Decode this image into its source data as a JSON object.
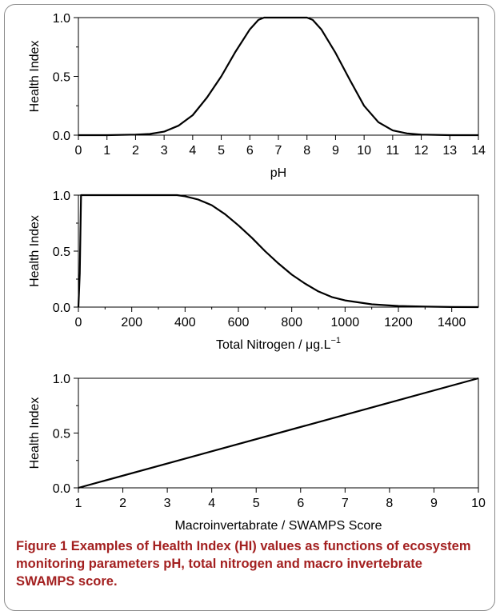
{
  "chart_data": [
    {
      "type": "line",
      "xlabel": "pH",
      "ylabel": "Health Index",
      "xlim": [
        0,
        14
      ],
      "ylim": [
        0,
        1
      ],
      "xticks": [
        "0",
        "1",
        "2",
        "3",
        "4",
        "5",
        "6",
        "7",
        "8",
        "9",
        "10",
        "11",
        "12",
        "13",
        "14"
      ],
      "yticks": [
        "0.0",
        "0.5",
        "1.0"
      ],
      "series": [
        {
          "x": [
            0,
            1,
            2,
            2.5,
            3,
            3.5,
            4,
            4.5,
            5,
            5.5,
            6,
            6.3,
            6.5,
            7,
            7.5,
            8,
            8.2,
            8.5,
            9,
            9.5,
            10,
            10.5,
            11,
            11.5,
            12,
            13,
            14
          ],
          "y": [
            0,
            0,
            0.005,
            0.01,
            0.03,
            0.08,
            0.17,
            0.32,
            0.5,
            0.71,
            0.9,
            0.98,
            1,
            1,
            1,
            1,
            0.98,
            0.9,
            0.7,
            0.47,
            0.25,
            0.11,
            0.04,
            0.015,
            0.005,
            0,
            0
          ]
        }
      ]
    },
    {
      "type": "line",
      "xlabel": "Total Nitrogen / μg.L",
      "xlabel_sup": "−1",
      "ylabel": "Health Index",
      "xlim": [
        0,
        1500
      ],
      "ylim": [
        0,
        1
      ],
      "xticks": [
        "0",
        "200",
        "400",
        "600",
        "800",
        "1000",
        "1200",
        "1400"
      ],
      "yticks": [
        "0.0",
        "0.5",
        "1.0"
      ],
      "series": [
        {
          "x": [
            0,
            5,
            10,
            100,
            200,
            300,
            370,
            400,
            450,
            500,
            550,
            600,
            650,
            700,
            750,
            800,
            850,
            900,
            950,
            1000,
            1100,
            1200,
            1300,
            1400,
            1500
          ],
          "y": [
            0,
            0.3,
            1,
            1,
            1,
            1,
            1,
            0.99,
            0.96,
            0.91,
            0.83,
            0.73,
            0.62,
            0.5,
            0.39,
            0.29,
            0.21,
            0.14,
            0.09,
            0.06,
            0.025,
            0.01,
            0.004,
            0.001,
            0
          ]
        }
      ]
    },
    {
      "type": "line",
      "xlabel": "Macroinvertabrate / SWAMPS Score",
      "ylabel": "Health Index",
      "xlim": [
        1,
        10
      ],
      "ylim": [
        0,
        1
      ],
      "xticks": [
        "1",
        "2",
        "3",
        "4",
        "5",
        "6",
        "7",
        "8",
        "9",
        "10"
      ],
      "yticks": [
        "0.0",
        "0.5",
        "1.0"
      ],
      "series": [
        {
          "x": [
            1,
            10
          ],
          "y": [
            0,
            1
          ]
        }
      ]
    }
  ],
  "caption": {
    "label": "Figure 1",
    "text": " Examples of Health Index (HI) values as functions of ecosystem monitoring parameters pH, total nitrogen and macro invertebrate SWAMPS score."
  }
}
